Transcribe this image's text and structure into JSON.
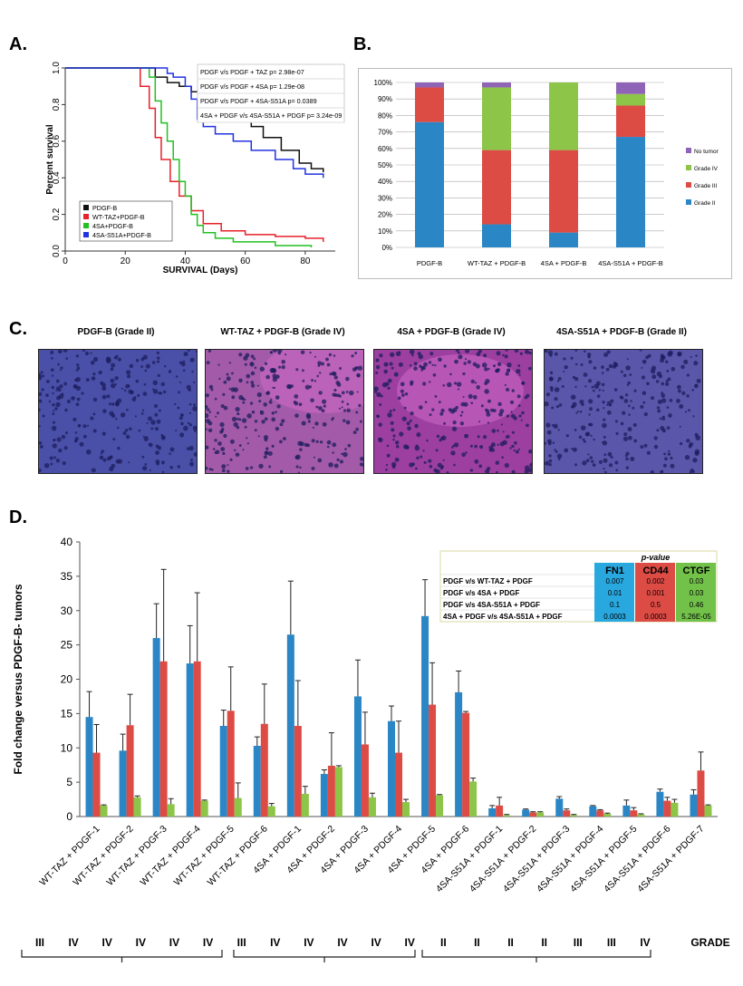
{
  "panels": {
    "A": "A.",
    "B": "B.",
    "C": "C.",
    "D": "D."
  },
  "chart_data": [
    {
      "id": "A",
      "type": "line",
      "xlabel": "SURVIVAL (Days)",
      "ylabel": "Percent survival",
      "xlim": [
        0,
        90
      ],
      "ylim": [
        0,
        1.0
      ],
      "xticks": [
        0,
        20,
        40,
        60,
        80
      ],
      "yticks": [
        0.0,
        0.2,
        0.4,
        0.6,
        0.8,
        1.0
      ],
      "legend_position": "bottom-left",
      "series": [
        {
          "name": "PDGF-B",
          "color": "#111111",
          "points": [
            [
              0,
              1.0
            ],
            [
              26,
              1.0
            ],
            [
              30,
              0.95
            ],
            [
              34,
              0.92
            ],
            [
              38,
              0.9
            ],
            [
              42,
              0.87
            ],
            [
              46,
              0.85
            ],
            [
              50,
              0.8
            ],
            [
              56,
              0.75
            ],
            [
              62,
              0.68
            ],
            [
              66,
              0.62
            ],
            [
              72,
              0.55
            ],
            [
              78,
              0.48
            ],
            [
              82,
              0.45
            ],
            [
              86,
              0.43
            ]
          ]
        },
        {
          "name": "WT-TAZ+PDGF-B",
          "color": "#e8202a",
          "points": [
            [
              0,
              1.0
            ],
            [
              22,
              1.0
            ],
            [
              25,
              0.9
            ],
            [
              28,
              0.78
            ],
            [
              30,
              0.62
            ],
            [
              32,
              0.5
            ],
            [
              35,
              0.38
            ],
            [
              38,
              0.3
            ],
            [
              42,
              0.22
            ],
            [
              46,
              0.15
            ],
            [
              52,
              0.11
            ],
            [
              60,
              0.09
            ],
            [
              70,
              0.08
            ],
            [
              80,
              0.07
            ],
            [
              86,
              0.05
            ]
          ]
        },
        {
          "name": "4SA+PDGF-B",
          "color": "#22c022",
          "points": [
            [
              0,
              1.0
            ],
            [
              26,
              1.0
            ],
            [
              28,
              0.95
            ],
            [
              30,
              0.82
            ],
            [
              32,
              0.7
            ],
            [
              34,
              0.6
            ],
            [
              36,
              0.5
            ],
            [
              38,
              0.38
            ],
            [
              40,
              0.3
            ],
            [
              42,
              0.2
            ],
            [
              44,
              0.14
            ],
            [
              46,
              0.1
            ],
            [
              50,
              0.07
            ],
            [
              56,
              0.05
            ],
            [
              70,
              0.03
            ],
            [
              82,
              0.02
            ]
          ]
        },
        {
          "name": "4SA-S51A+PDGF-B",
          "color": "#2233e0",
          "points": [
            [
              0,
              1.0
            ],
            [
              30,
              1.0
            ],
            [
              34,
              0.97
            ],
            [
              36,
              0.95
            ],
            [
              40,
              0.9
            ],
            [
              42,
              0.83
            ],
            [
              44,
              0.72
            ],
            [
              46,
              0.68
            ],
            [
              50,
              0.64
            ],
            [
              56,
              0.6
            ],
            [
              62,
              0.55
            ],
            [
              70,
              0.5
            ],
            [
              76,
              0.45
            ],
            [
              80,
              0.42
            ],
            [
              86,
              0.4
            ]
          ]
        }
      ],
      "annotations": [
        "PDGF v/s PDGF + TAZ  p= 2.98e-07",
        "PDGF v/s PDGF + 4SA  p= 1.29e-08",
        "PDGF v/s PDGF + 4SA-S51A  p= 0.0389",
        "4SA + PDGF v/s 4SA-S51A + PDGF p= 3.24e-09"
      ]
    },
    {
      "id": "B",
      "type": "bar",
      "stacked": true,
      "categories": [
        "PDGF-B",
        "WT-TAZ + PDGF-B",
        "4SA + PDGF-B",
        "4SA-S51A + PDGF-B"
      ],
      "yticks": [
        "0%",
        "10%",
        "20%",
        "30%",
        "40%",
        "50%",
        "60%",
        "70%",
        "80%",
        "90%",
        "100%"
      ],
      "ylim": [
        0,
        100
      ],
      "legend_position": "right",
      "series": [
        {
          "name": "Grade II",
          "color": "#2b86c5",
          "values": [
            76,
            14,
            9,
            67
          ]
        },
        {
          "name": "Grade III",
          "color": "#dd4b45",
          "values": [
            21,
            45,
            50,
            19
          ]
        },
        {
          "name": "Grade IV",
          "color": "#8cc548",
          "values": [
            0,
            38,
            41,
            7
          ]
        },
        {
          "name": "No tumor",
          "color": "#8f63b6",
          "values": [
            3,
            3,
            0,
            7
          ]
        }
      ]
    },
    {
      "id": "D",
      "type": "bar",
      "ylabel": "Fold change versus PDGF-B- tumors",
      "ylim": [
        0,
        40
      ],
      "yticks": [
        0,
        5,
        10,
        15,
        20,
        25,
        30,
        35,
        40
      ],
      "categories": [
        "WT-TAZ + PDGF-1",
        "WT-TAZ + PDGF-2",
        "WT-TAZ + PDGF-3",
        "WT-TAZ + PDGF-4",
        "WT-TAZ + PDGF-5",
        "WT-TAZ + PDGF-6",
        "4SA + PDGF-1",
        "4SA + PDGF-2",
        "4SA + PDGF-3",
        "4SA + PDGF-4",
        "4SA + PDGF-5",
        "4SA + PDGF-6",
        "4SA-S51A + PDGF-1",
        "4SA-S51A + PDGF-2",
        "4SA-S51A + PDGF-3",
        "4SA-S51A + PDGF-4",
        "4SA-S51A + PDGF-5",
        "4SA-S51A + PDGF-6",
        "4SA-S51A + PDGF-7"
      ],
      "series": [
        {
          "name": "FN1",
          "color": "#2b86c5",
          "values": [
            14.5,
            9.6,
            26,
            22.3,
            13.2,
            10.3,
            26.5,
            6.2,
            17.5,
            13.9,
            29.2,
            18.1,
            1.2,
            1.0,
            2.6,
            1.5,
            1.6,
            3.6,
            3.2
          ],
          "errors": [
            3.7,
            2.4,
            5,
            5.5,
            2.3,
            1.3,
            7.8,
            0.6,
            5.3,
            2.2,
            5.3,
            3.1,
            0.4,
            0.1,
            0.3,
            0.1,
            0.8,
            0.4,
            0.7
          ]
        },
        {
          "name": "CD44",
          "color": "#dd4b45",
          "values": [
            9.3,
            13.3,
            22.6,
            22.6,
            15.4,
            13.5,
            13.2,
            7.4,
            10.5,
            9.3,
            16.3,
            15.1,
            1.6,
            0.6,
            0.9,
            0.9,
            0.9,
            2.3,
            6.7
          ],
          "errors": [
            4.1,
            4.5,
            13.4,
            10,
            6.4,
            5.8,
            6.6,
            4.8,
            4.7,
            4.6,
            6.1,
            0.2,
            1.2,
            0.1,
            0.2,
            0.1,
            0.4,
            0.5,
            2.7
          ]
        },
        {
          "name": "CTGF",
          "color": "#8cc548",
          "values": [
            1.6,
            2.8,
            1.8,
            2.3,
            2.7,
            1.5,
            3.3,
            7.2,
            2.8,
            2.1,
            3.1,
            5.1,
            0.2,
            0.6,
            0.2,
            0.4,
            0.3,
            2.0,
            1.6
          ],
          "errors": [
            0.1,
            0.2,
            0.8,
            0.1,
            2.2,
            0.4,
            1.1,
            0.2,
            0.6,
            0.4,
            0.1,
            0.5,
            0.1,
            0.1,
            0.1,
            0.1,
            0.1,
            0.5,
            0.1
          ]
        }
      ],
      "pvalue_table": {
        "header": "p-value",
        "columns": [
          "FN1",
          "CD44",
          "CTGF"
        ],
        "rows": [
          {
            "label": "PDGF v/s WT-TAZ + PDGF",
            "values": [
              "0.007",
              "0.002",
              "0.03"
            ]
          },
          {
            "label": "PDGF v/s 4SA + PDGF",
            "values": [
              "0.01",
              "0.001",
              "0.03"
            ]
          },
          {
            "label": "PDGF v/s 4SA-S51A + PDGF",
            "values": [
              "0.1",
              "0.5",
              "0.46"
            ]
          },
          {
            "label": "4SA + PDGF v/s 4SA-S51A + PDGF",
            "values": [
              "0.0003",
              "0.0003",
              "5.26E-05"
            ]
          }
        ]
      },
      "grade_label": "GRADE",
      "grades": [
        "III",
        "IV",
        "IV",
        "IV",
        "IV",
        "IV",
        "III",
        "IV",
        "IV",
        "IV",
        "IV",
        "IV",
        "II",
        "II",
        "II",
        "II",
        "III",
        "III",
        "IV"
      ]
    }
  ],
  "histology": {
    "images": [
      {
        "title": "PDGF-B (Grade II)",
        "tint": "#4a4fa8"
      },
      {
        "title": "WT-TAZ + PDGF-B (Grade IV)",
        "tint": "#a35aa8"
      },
      {
        "title": "4SA + PDGF-B (Grade IV)",
        "tint": "#9c3fa0"
      },
      {
        "title": "4SA-S51A + PDGF-B (Grade II)",
        "tint": "#5a56aa"
      }
    ]
  }
}
